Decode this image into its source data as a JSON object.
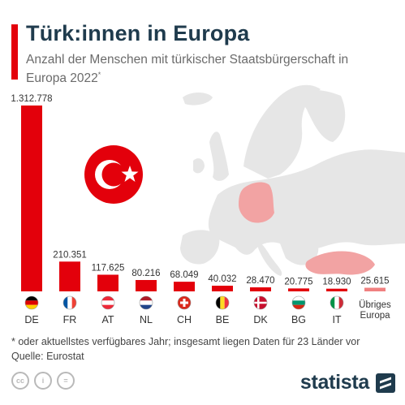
{
  "header": {
    "title": "Türk:innen in Europa",
    "subtitle": "Anzahl der Menschen mit türkischer Staatsbürgerschaft in Europa 2022",
    "subtitle_mark": "*"
  },
  "footer": {
    "footnote": "* oder aktuellstes verfügbares Jahr; insgesamt liegen Daten für 23 Länder vor",
    "source": "Quelle: Eurostat",
    "brand": "statista"
  },
  "colors": {
    "bar": "#e3000b",
    "other_bar": "#f08080",
    "map_land": "#e6e6e6",
    "map_highlight": "#f2a3a3",
    "title": "#1f3b4d"
  },
  "chart_data": {
    "type": "bar",
    "categories": [
      "DE",
      "FR",
      "AT",
      "NL",
      "CH",
      "BE",
      "DK",
      "BG",
      "IT",
      "Übriges Europa"
    ],
    "values": [
      1312778,
      210351,
      117625,
      80216,
      68049,
      40032,
      28470,
      20775,
      18930,
      25615
    ],
    "value_labels": [
      "1.312.778",
      "210.351",
      "117.625",
      "80.216",
      "68.049",
      "40.032",
      "28.470",
      "20.775",
      "18.930",
      "25.615"
    ],
    "flags": [
      "flag-de",
      "flag-fr",
      "flag-at",
      "flag-nl",
      "flag-ch",
      "flag-be",
      "flag-dk",
      "flag-bg",
      "flag-it",
      ""
    ],
    "ylim": [
      0,
      1312778
    ],
    "grid": false,
    "legend": "none"
  },
  "decoration": {
    "flag_icon": "turkey-flag-icon",
    "map_icon": "europe-map-icon"
  }
}
